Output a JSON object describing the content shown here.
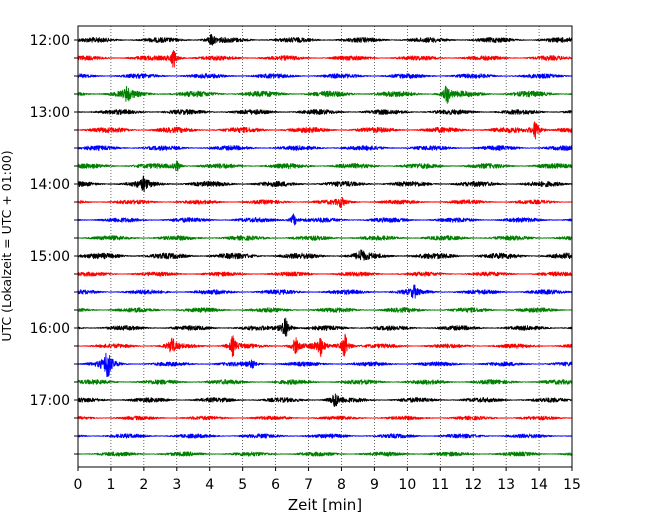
{
  "chart_data": {
    "type": "line",
    "title": "",
    "xlabel": "Zeit  [min]",
    "ylabel": "UTC (Lokalzeit = UTC + 01:00)",
    "xlim": [
      0,
      15
    ],
    "x_ticks": [
      0,
      1,
      2,
      3,
      4,
      5,
      6,
      7,
      8,
      9,
      10,
      11,
      12,
      13,
      14,
      15
    ],
    "y_tick_labels": [
      "12:00",
      "13:00",
      "14:00",
      "15:00",
      "16:00",
      "17:00"
    ],
    "grid": "vertical-dotted",
    "trace_colors": [
      "#000000",
      "#ff0000",
      "#0000ff",
      "#008000"
    ],
    "series": [
      {
        "start": "12:00",
        "color": "#000000",
        "noise": 2.6,
        "events": [
          {
            "x": 4.05,
            "amp": 4.5
          }
        ]
      },
      {
        "start": "12:15",
        "color": "#ff0000",
        "noise": 2.4,
        "events": [
          {
            "x": 2.9,
            "amp": 7
          }
        ]
      },
      {
        "start": "12:30",
        "color": "#0000ff",
        "noise": 2.4,
        "events": []
      },
      {
        "start": "12:45",
        "color": "#008000",
        "noise": 3.0,
        "events": [
          {
            "x": 1.5,
            "amp": 5
          },
          {
            "x": 11.2,
            "amp": 6.5
          }
        ]
      },
      {
        "start": "13:00",
        "color": "#000000",
        "noise": 2.6,
        "events": []
      },
      {
        "start": "13:15",
        "color": "#ff0000",
        "noise": 2.8,
        "events": [
          {
            "x": 13.9,
            "amp": 8.5
          }
        ]
      },
      {
        "start": "13:30",
        "color": "#0000ff",
        "noise": 2.4,
        "events": []
      },
      {
        "start": "13:45",
        "color": "#008000",
        "noise": 2.6,
        "events": [
          {
            "x": 3.0,
            "amp": 4
          }
        ]
      },
      {
        "start": "14:00",
        "color": "#000000",
        "noise": 2.8,
        "events": [
          {
            "x": 2.0,
            "amp": 4.5
          }
        ]
      },
      {
        "start": "14:15",
        "color": "#ff0000",
        "noise": 2.2,
        "events": [
          {
            "x": 8.0,
            "amp": 3.5
          }
        ]
      },
      {
        "start": "14:30",
        "color": "#0000ff",
        "noise": 2.4,
        "events": [
          {
            "x": 6.55,
            "amp": 4.5
          }
        ]
      },
      {
        "start": "14:45",
        "color": "#008000",
        "noise": 2.4,
        "events": []
      },
      {
        "start": "15:00",
        "color": "#000000",
        "noise": 3.0,
        "events": [
          {
            "x": 8.6,
            "amp": 4
          }
        ]
      },
      {
        "start": "15:15",
        "color": "#ff0000",
        "noise": 2.2,
        "events": []
      },
      {
        "start": "15:30",
        "color": "#0000ff",
        "noise": 2.4,
        "events": [
          {
            "x": 10.2,
            "amp": 4
          }
        ]
      },
      {
        "start": "15:45",
        "color": "#008000",
        "noise": 2.4,
        "events": []
      },
      {
        "start": "16:00",
        "color": "#000000",
        "noise": 2.4,
        "events": [
          {
            "x": 6.3,
            "amp": 10
          }
        ]
      },
      {
        "start": "16:15",
        "color": "#ff0000",
        "noise": 2.2,
        "events": [
          {
            "x": 2.85,
            "amp": 6
          },
          {
            "x": 4.7,
            "amp": 7
          },
          {
            "x": 6.6,
            "amp": 6
          },
          {
            "x": 7.35,
            "amp": 7
          },
          {
            "x": 8.1,
            "amp": 10
          }
        ]
      },
      {
        "start": "16:30",
        "color": "#0000ff",
        "noise": 2.2,
        "events": [
          {
            "x": 0.9,
            "amp": 13
          },
          {
            "x": 5.3,
            "amp": 3
          }
        ]
      },
      {
        "start": "16:45",
        "color": "#008000",
        "noise": 2.4,
        "events": []
      },
      {
        "start": "17:00",
        "color": "#000000",
        "noise": 2.4,
        "events": [
          {
            "x": 7.8,
            "amp": 6
          }
        ]
      },
      {
        "start": "17:15",
        "color": "#ff0000",
        "noise": 2.0,
        "events": []
      },
      {
        "start": "17:30",
        "color": "#0000ff",
        "noise": 2.2,
        "events": []
      },
      {
        "start": "17:45",
        "color": "#008000",
        "noise": 2.2,
        "events": []
      }
    ]
  }
}
